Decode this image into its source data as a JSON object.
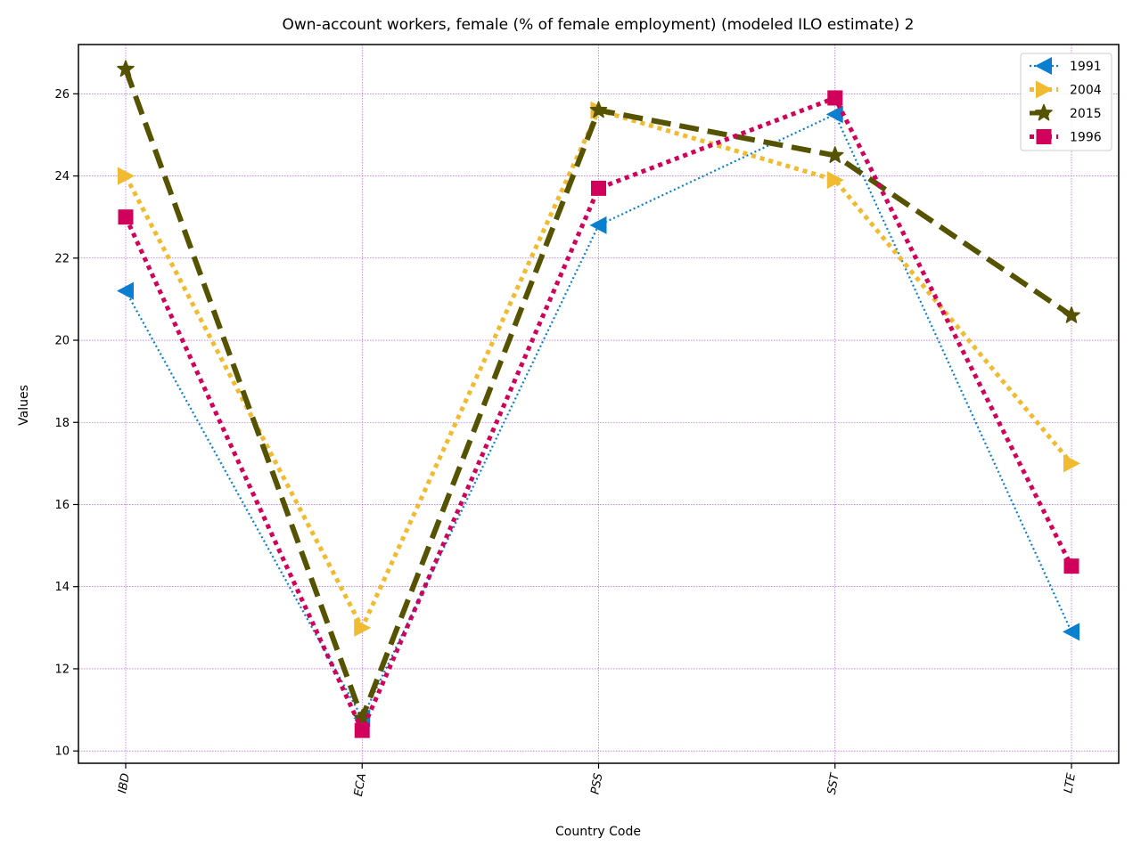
{
  "chart_data": {
    "type": "line",
    "title": "Own-account workers, female (% of female employment) (modeled ILO estimate) 2",
    "xlabel": "Country Code",
    "ylabel": "Values",
    "categories": [
      "IBD",
      "ECA",
      "PSS",
      "SST",
      "LTE"
    ],
    "ylim": [
      9.7,
      27.2
    ],
    "yticks": [
      10,
      12,
      14,
      16,
      18,
      20,
      22,
      24,
      26
    ],
    "grid": true,
    "grid_color": "#b040e0",
    "legend_position": "top-right",
    "series": [
      {
        "name": "1991",
        "values": [
          21.2,
          10.8,
          22.8,
          25.5,
          12.9
        ],
        "color": "#0a7fcf",
        "marker": "triangle-left",
        "line_style": "dotted"
      },
      {
        "name": "2004",
        "values": [
          24.0,
          13.0,
          25.6,
          23.9,
          17.0
        ],
        "color": "#f0bb30",
        "marker": "triangle-right",
        "line_style": "dotted-thick"
      },
      {
        "name": "2015",
        "values": [
          26.6,
          10.8,
          25.6,
          24.5,
          20.6
        ],
        "color": "#555200",
        "marker": "star",
        "line_style": "dashed"
      },
      {
        "name": "1996",
        "values": [
          23.0,
          10.5,
          23.7,
          25.9,
          14.5
        ],
        "color": "#d1005a",
        "marker": "square",
        "line_style": "dotted-thick"
      }
    ]
  }
}
